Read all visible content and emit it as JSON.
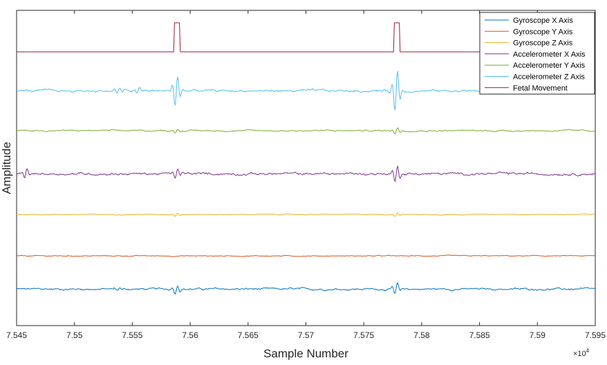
{
  "chart_data": {
    "type": "line",
    "xlabel": "Sample Number",
    "ylabel": "Amplitude",
    "x_exponent_label": "×10",
    "x_exponent_power": "4",
    "xlim": [
      7.545,
      7.595
    ],
    "ylim": [
      0,
      7.6
    ],
    "xticks": [
      "7.545",
      "7.55",
      "7.555",
      "7.56",
      "7.565",
      "7.57",
      "7.575",
      "7.58",
      "7.585",
      "7.59",
      "7.595"
    ],
    "legend_position": "top-right",
    "grid": false,
    "series": [
      {
        "name": "Gyroscope X Axis",
        "color": "#0072BD",
        "baseline": 0.88,
        "noise": 0.025,
        "bursts": [
          [
            7.5588,
            0.12
          ],
          [
            7.5778,
            0.15
          ],
          [
            7.5538,
            0.04
          ]
        ]
      },
      {
        "name": "Gyroscope Y Axis",
        "color": "#D95319",
        "baseline": 1.68,
        "noise": 0.012,
        "bursts": []
      },
      {
        "name": "Gyroscope Z Axis",
        "color": "#EDB120",
        "baseline": 2.68,
        "noise": 0.01,
        "bursts": [
          [
            7.5588,
            0.04
          ],
          [
            7.5778,
            0.05
          ]
        ]
      },
      {
        "name": "Accelerometer X Axis",
        "color": "#7E2F8E",
        "baseline": 3.66,
        "noise": 0.03,
        "bursts": [
          [
            7.5588,
            0.12
          ],
          [
            7.5778,
            0.22
          ],
          [
            7.5458,
            0.12
          ]
        ]
      },
      {
        "name": "Accelerometer Y Axis",
        "color": "#77AC30",
        "baseline": 4.7,
        "noise": 0.018,
        "bursts": [
          [
            7.5588,
            0.05
          ],
          [
            7.5778,
            0.08
          ]
        ]
      },
      {
        "name": "Accelerometer Z Axis",
        "color": "#4DBEEE",
        "baseline": 5.66,
        "noise": 0.03,
        "bursts": [
          [
            7.5588,
            0.4
          ],
          [
            7.5778,
            0.55
          ],
          [
            7.5538,
            0.08
          ],
          [
            7.5555,
            0.07
          ]
        ]
      },
      {
        "name": "Fetal Movement",
        "color": "#A2142F",
        "baseline": 6.6,
        "noise": 0,
        "pulses": [
          [
            7.5586,
            7.5591,
            0.7
          ],
          [
            7.5776,
            7.5781,
            0.7
          ]
        ]
      }
    ]
  }
}
